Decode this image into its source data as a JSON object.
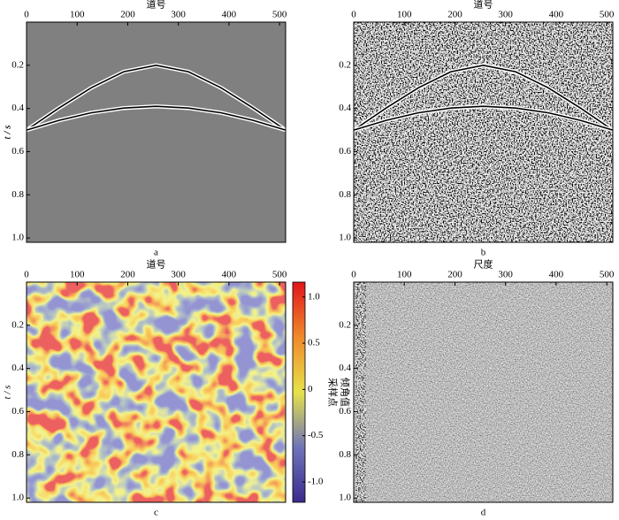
{
  "chart_data": [
    {
      "type": "line",
      "xlabel": "道号",
      "ylabel": "t / s",
      "caption": "a",
      "x": [
        0,
        64,
        128,
        192,
        256,
        320,
        384,
        448,
        512
      ],
      "series": [
        {
          "color": "#000000",
          "values": [
            0.5,
            0.398,
            0.304,
            0.23,
            0.2,
            0.23,
            0.304,
            0.398,
            0.5
          ]
        },
        {
          "color": "#000000",
          "values": [
            0.5,
            0.455,
            0.42,
            0.398,
            0.39,
            0.398,
            0.42,
            0.455,
            0.5
          ]
        }
      ],
      "xlim": [
        0,
        512
      ],
      "xticks": [
        0,
        100,
        200,
        300,
        400,
        500
      ],
      "ylim": [
        0,
        1.02
      ],
      "y_inverted": true,
      "yticks": [
        0.2,
        0.4,
        0.6,
        0.8,
        {
          "value": 1,
          "label": "1.0"
        }
      ]
    },
    {
      "type": "line",
      "xlabel": "道号",
      "ylabel": "t / s",
      "caption": "b",
      "x": [
        0,
        64,
        128,
        192,
        256,
        320,
        384,
        448,
        512
      ],
      "series": [
        {
          "color": "#000000",
          "values": [
            0.5,
            0.398,
            0.304,
            0.23,
            0.2,
            0.23,
            0.304,
            0.398,
            0.5
          ]
        },
        {
          "color": "#000000",
          "values": [
            0.5,
            0.455,
            0.42,
            0.398,
            0.39,
            0.398,
            0.42,
            0.455,
            0.5
          ]
        }
      ],
      "xlim": [
        0,
        512
      ],
      "xticks": [
        0,
        100,
        200,
        300,
        400,
        500
      ],
      "ylim": [
        0,
        1.02
      ],
      "y_inverted": true,
      "yticks": [
        0.2,
        0.4,
        0.6,
        0.8,
        {
          "value": 1,
          "label": "1.0"
        }
      ]
    },
    {
      "type": "heatmap",
      "xlabel": "道号",
      "ylabel": "t / s",
      "caption": "c",
      "xlim": [
        0,
        512
      ],
      "xticks": [
        0,
        100,
        200,
        300,
        400,
        500
      ],
      "ylim": [
        0,
        1.02
      ],
      "y_inverted": true,
      "yticks": [
        0.2,
        0.4,
        0.6,
        0.8,
        {
          "value": 1,
          "label": "1.0"
        }
      ],
      "colorbar_label": [
        "倾角值",
        "采样点"
      ],
      "clim": [
        -1.22,
        1.16
      ],
      "colorbar_ticks": [
        {
          "value": 1,
          "label": "1.0"
        },
        0.5,
        0,
        -0.5,
        {
          "value": -1,
          "label": "-1.0"
        }
      ]
    },
    {
      "type": "image",
      "xlabel": "尺度",
      "caption": "d",
      "xlim": [
        0,
        512
      ],
      "xticks": [
        0,
        100,
        200,
        300,
        400,
        500
      ],
      "ylim": [
        0,
        1.02
      ],
      "y_inverted": true,
      "yticks": [
        0.2,
        0.4,
        0.6,
        0.8,
        {
          "value": 1,
          "label": "1.0"
        }
      ]
    }
  ]
}
